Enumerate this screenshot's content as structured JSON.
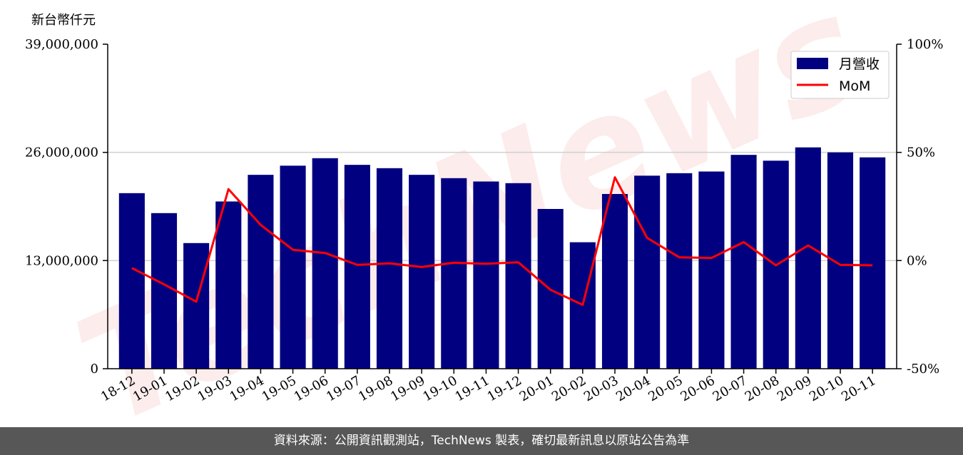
{
  "chart_data": {
    "type": "bar",
    "ylabel": "新台幣仟元",
    "categories": [
      "18-12",
      "19-01",
      "19-02",
      "19-03",
      "19-04",
      "19-05",
      "19-06",
      "19-07",
      "19-08",
      "19-09",
      "19-10",
      "19-11",
      "19-12",
      "20-01",
      "20-02",
      "20-03",
      "20-04",
      "20-05",
      "20-06",
      "20-07",
      "20-08",
      "20-09",
      "20-10",
      "20-11"
    ],
    "series": [
      {
        "name": "月營收",
        "type": "bar",
        "axis": "left",
        "color": "#000080",
        "values": [
          21100000,
          18700000,
          15100000,
          20100000,
          23300000,
          24400000,
          25300000,
          24500000,
          24100000,
          23300000,
          22900000,
          22500000,
          22300000,
          19200000,
          15200000,
          21000000,
          23200000,
          23500000,
          23700000,
          25700000,
          25000000,
          26600000,
          26000000,
          25400000
        ]
      },
      {
        "name": "MoM",
        "type": "line",
        "axis": "right",
        "color": "#ff0000",
        "values": [
          -3.5,
          -11.0,
          -19.0,
          33.0,
          16.5,
          5.0,
          3.5,
          -2.0,
          -1.3,
          -3.0,
          -1.0,
          -1.5,
          -0.8,
          -13.5,
          -20.5,
          38.5,
          10.5,
          1.5,
          1.2,
          8.5,
          -2.2,
          7.0,
          -2.0,
          -2.2
        ]
      }
    ],
    "ylim": [
      0,
      39000000
    ],
    "yticks": [
      "0",
      "13,000,000",
      "26,000,000",
      "39,000,000"
    ],
    "y2lim": [
      -50,
      100
    ],
    "y2ticks": [
      "-50%",
      "0%",
      "50%",
      "100%"
    ],
    "grid": "horizontal",
    "legend_position": "top-right"
  },
  "watermark": "TechNews",
  "footer": {
    "source_text": "資料來源：公開資訊觀測站，TechNews 製表，確切最新訊息以原站公告為準"
  }
}
